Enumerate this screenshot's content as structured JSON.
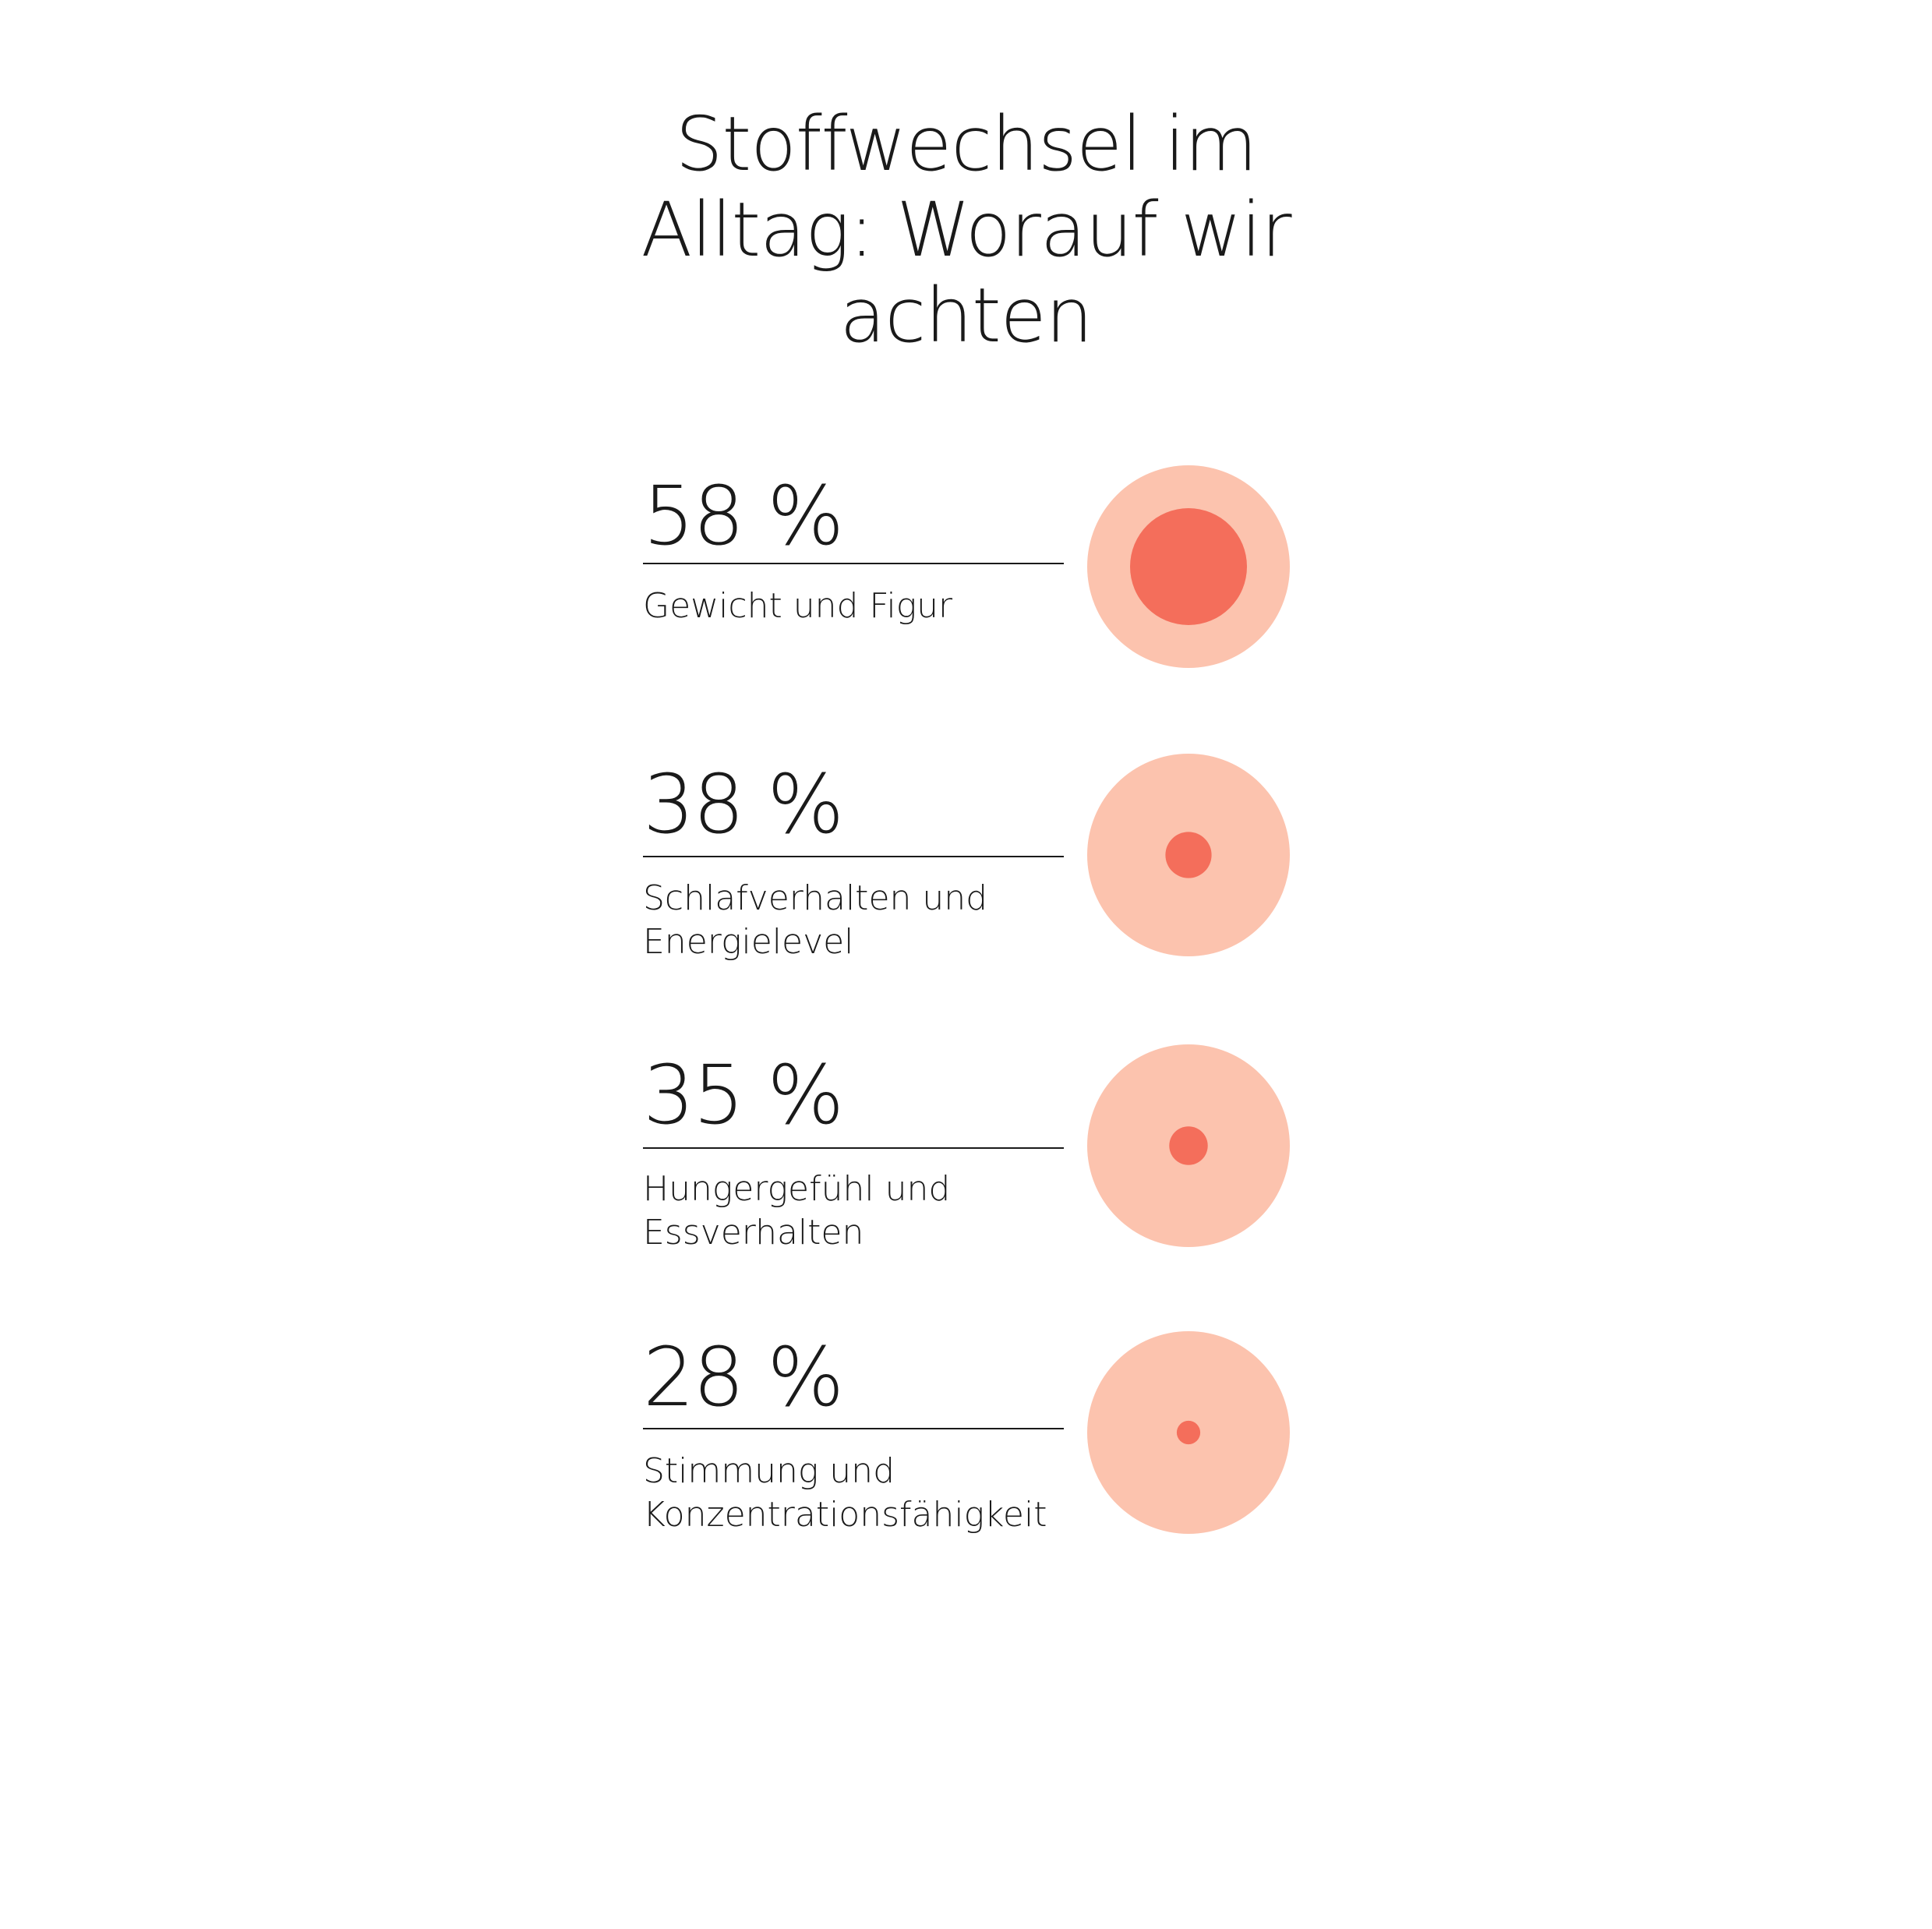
{
  "title_lines": [
    "Stoffwechsel im",
    "Alltag: Worauf wir",
    "achten"
  ],
  "colors": {
    "outer": "#fcc3ae",
    "inner": "#f46e5b",
    "text": "#1a1a1a"
  },
  "chart_data": {
    "type": "proportional-circles",
    "title": "Stoffwechsel im Alltag: Worauf wir achten",
    "unit": "%",
    "items": [
      {
        "label": "Gewicht und Figur",
        "label_lines": [
          "Gewicht und Figur"
        ],
        "value": 58,
        "display": "58 %"
      },
      {
        "label": "Schlafverhalten und Energielevel",
        "label_lines": [
          "Schlafverhalten und",
          "Energielevel"
        ],
        "value": 38,
        "display": "38 %"
      },
      {
        "label": "Hungergefühl und Essverhalten",
        "label_lines": [
          "Hungergefühl und",
          "Essverhalten"
        ],
        "value": 35,
        "display": "35 %"
      },
      {
        "label": "Stimmung und Konzentrationsfähigkeit",
        "label_lines": [
          "Stimmung und",
          "Konzentrationsfähigkeit"
        ],
        "value": 28,
        "display": "28 %"
      }
    ]
  }
}
